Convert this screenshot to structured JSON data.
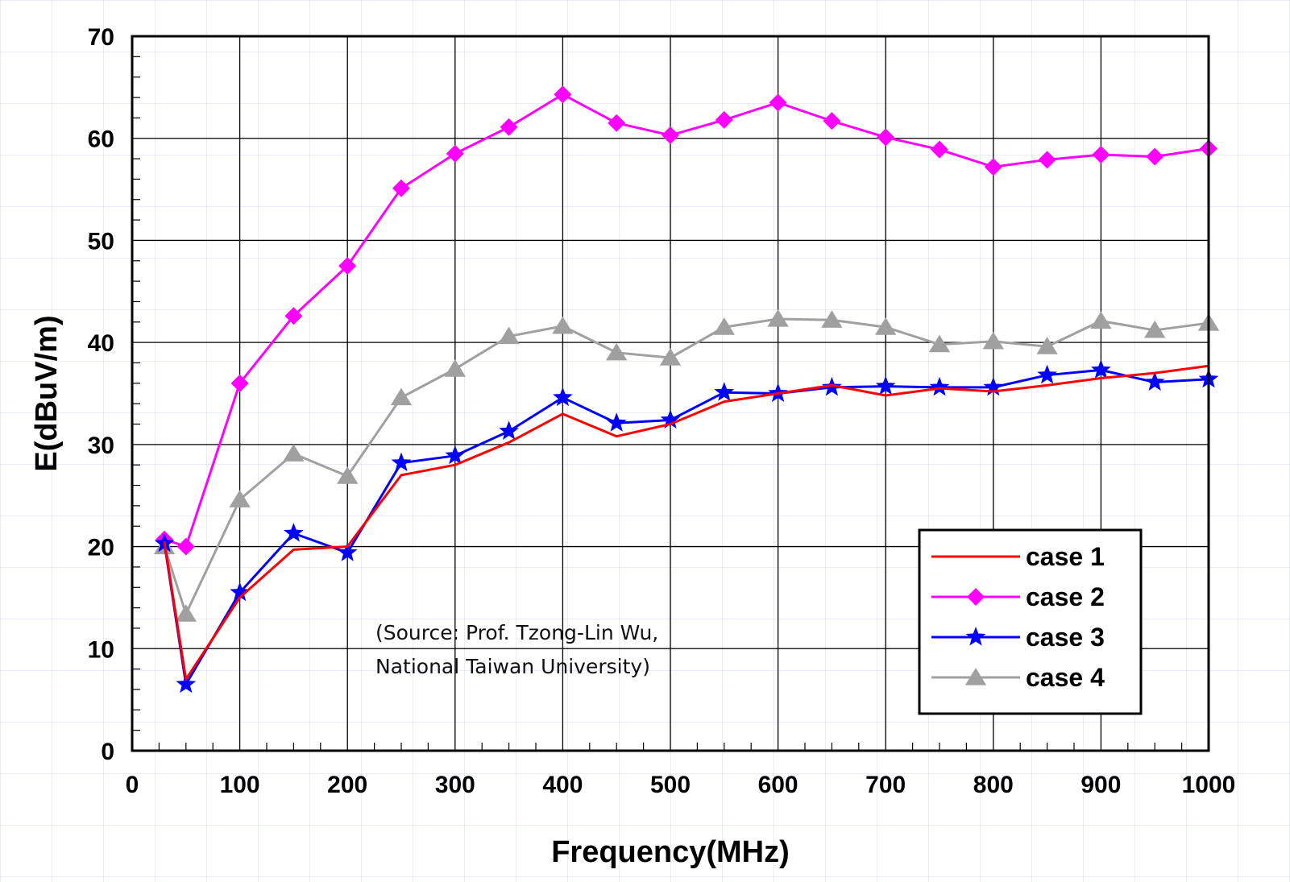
{
  "chart_data": {
    "type": "line",
    "xlabel": "Frequency(MHz)",
    "ylabel": "E(dBuV/m)",
    "xlim": [
      0,
      1000
    ],
    "ylim": [
      0,
      70
    ],
    "x_ticks": [
      0,
      100,
      200,
      300,
      400,
      500,
      600,
      700,
      800,
      900,
      1000
    ],
    "y_ticks": [
      0,
      10,
      20,
      30,
      40,
      50,
      60,
      70
    ],
    "grid": true,
    "legend_position": "bottom-right",
    "series": [
      {
        "name": "case 1",
        "color": "#ff0000",
        "marker": "none",
        "x": [
          30,
          50,
          100,
          150,
          200,
          250,
          300,
          350,
          400,
          450,
          500,
          550,
          600,
          650,
          700,
          750,
          800,
          850,
          900,
          950,
          1000
        ],
        "y": [
          20.5,
          7,
          15,
          19.7,
          20,
          27,
          28,
          30.2,
          33,
          30.8,
          32,
          34.2,
          35,
          35.8,
          34.8,
          35.5,
          35.2,
          35.8,
          36.5,
          37,
          37.7
        ]
      },
      {
        "name": "case 2",
        "color": "#ff00ff",
        "marker": "diamond",
        "x": [
          30,
          50,
          100,
          150,
          200,
          250,
          300,
          350,
          400,
          450,
          500,
          550,
          600,
          650,
          700,
          750,
          800,
          850,
          900,
          950,
          1000
        ],
        "y": [
          20.7,
          20,
          36,
          42.6,
          47.5,
          55.1,
          58.5,
          61.1,
          64.3,
          61.5,
          60.3,
          61.8,
          63.5,
          61.7,
          60.1,
          58.9,
          57.2,
          57.9,
          58.4,
          58.2,
          59
        ]
      },
      {
        "name": "case 3",
        "color": "#0000ff",
        "marker": "star",
        "x": [
          30,
          50,
          100,
          150,
          200,
          250,
          300,
          350,
          400,
          450,
          500,
          550,
          600,
          650,
          700,
          750,
          800,
          850,
          900,
          950,
          1000
        ],
        "y": [
          20.3,
          6.5,
          15.5,
          21.3,
          19.4,
          28.2,
          28.9,
          31.3,
          34.6,
          32.1,
          32.4,
          35.1,
          35,
          35.6,
          35.7,
          35.6,
          35.6,
          36.8,
          37.3,
          36.1,
          36.4
        ]
      },
      {
        "name": "case 4",
        "color": "#a0a0a0",
        "marker": "triangle",
        "x": [
          30,
          50,
          100,
          150,
          200,
          250,
          300,
          350,
          400,
          450,
          500,
          550,
          600,
          650,
          700,
          750,
          800,
          850,
          900,
          950,
          1000
        ],
        "y": [
          20,
          13.4,
          24.6,
          29.1,
          26.9,
          34.6,
          37.4,
          40.6,
          41.6,
          39,
          38.5,
          41.5,
          42.3,
          42.2,
          41.5,
          39.8,
          40.1,
          39.6,
          42.1,
          41.2,
          41.9
        ]
      }
    ]
  },
  "source_note": {
    "line1": "(Source: Prof. Tzong-Lin Wu,",
    "line2": "National Taiwan University)"
  }
}
